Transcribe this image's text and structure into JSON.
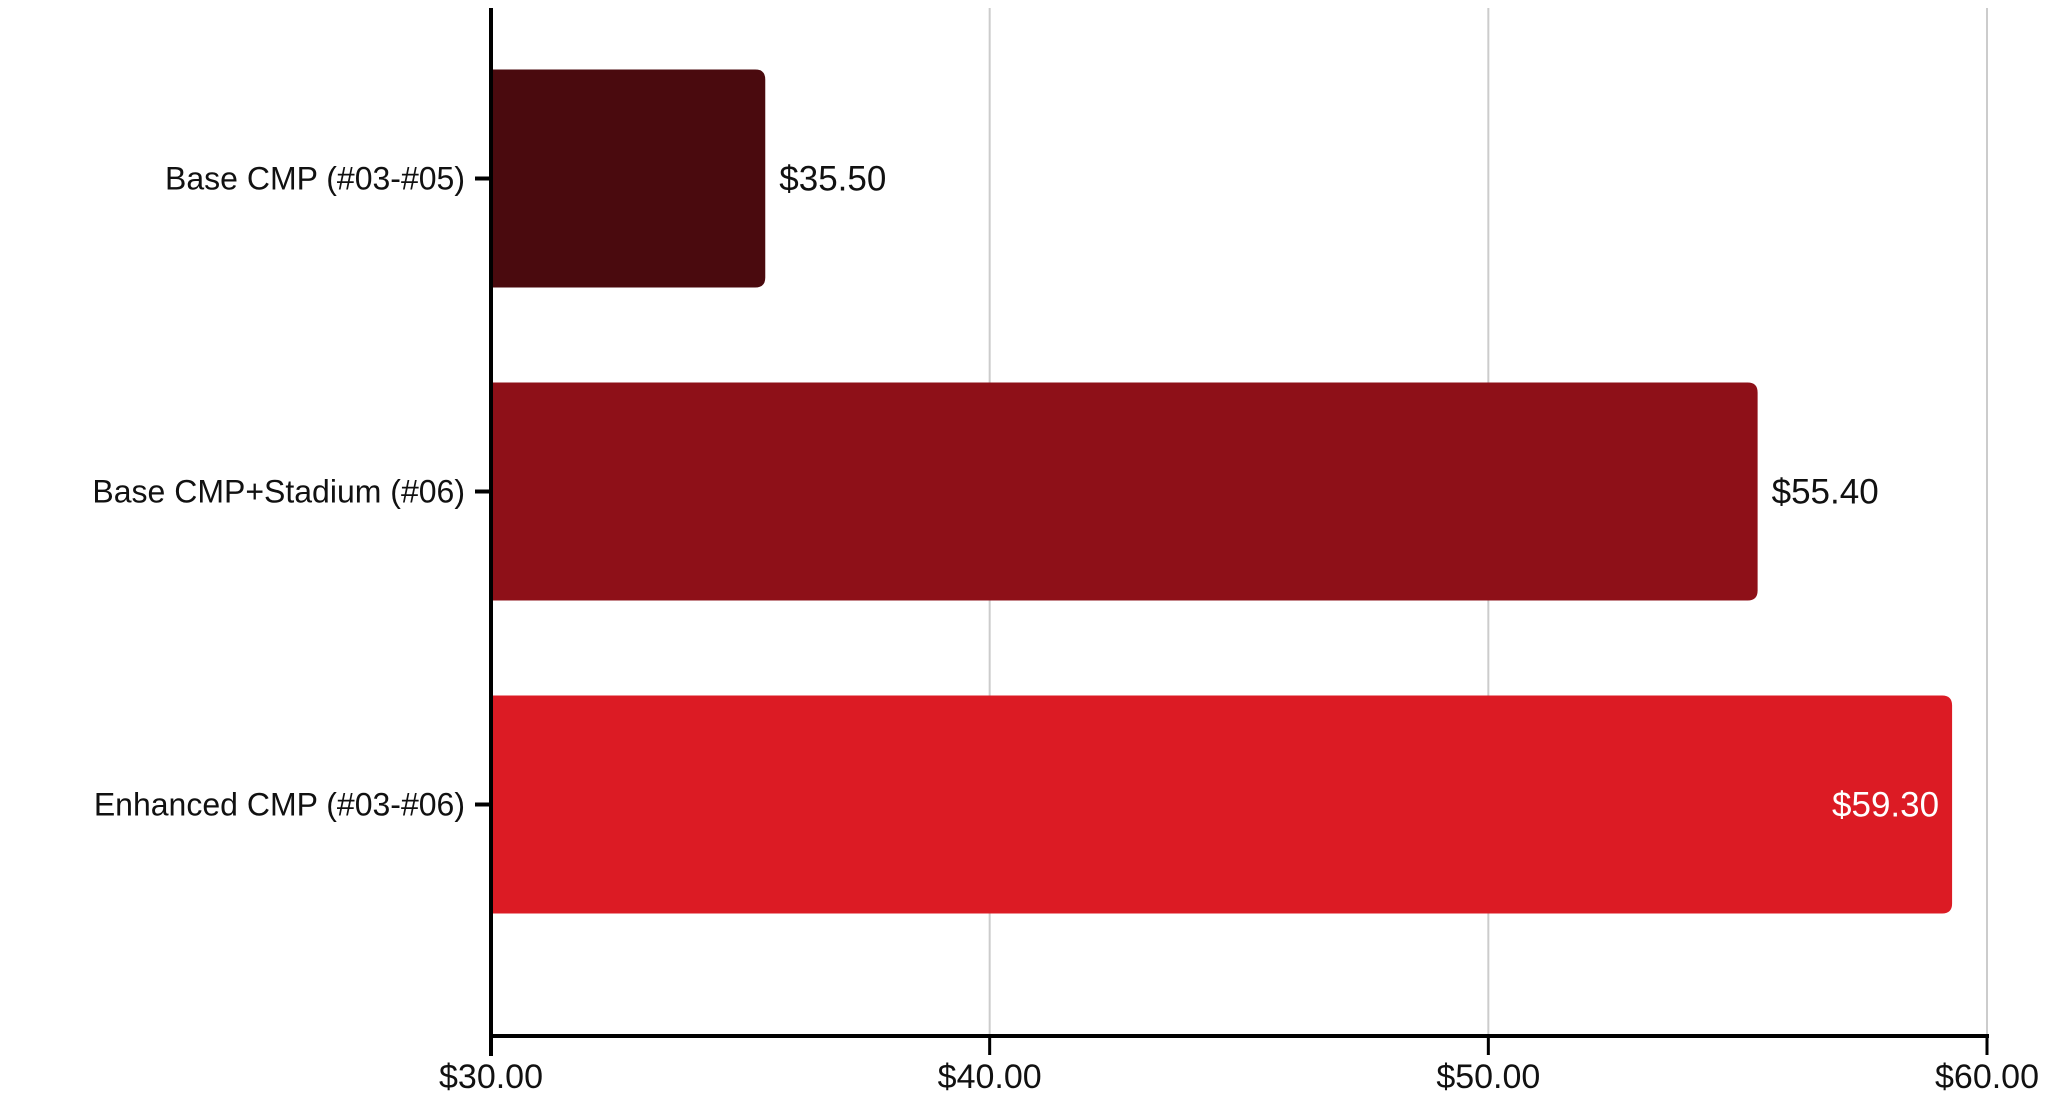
{
  "chart_data": {
    "type": "bar",
    "orientation": "horizontal",
    "categories": [
      "Base CMP (#03-#05)",
      "Base CMP+Stadium (#06)",
      "Enhanced CMP (#03-#06)"
    ],
    "values": [
      35.5,
      55.4,
      59.3
    ],
    "value_labels": [
      "$35.50",
      "$55.40",
      "$59.30"
    ],
    "bar_colors": [
      "#4a0a0e",
      "#8e1018",
      "#dc1b24"
    ],
    "value_label_colors": [
      "#111111",
      "#111111",
      "#ffffff"
    ],
    "xlim": [
      30,
      60
    ],
    "x_ticks": [
      30,
      40,
      50,
      60
    ],
    "x_tick_labels": [
      "$30.00",
      "$40.00",
      "$50.00",
      "$60.00"
    ],
    "title": "",
    "xlabel": "",
    "ylabel": "",
    "grid": "vertical"
  }
}
